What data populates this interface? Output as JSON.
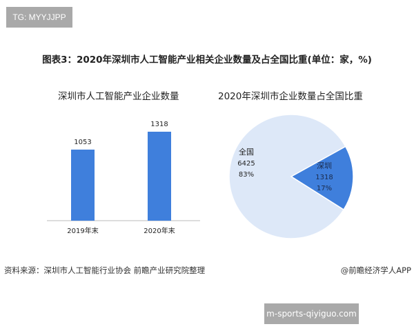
{
  "tag": "TG: MYYJJPP",
  "title": "图表3：2020年深圳市人工智能产业相关企业数量及占全国比重(单位：家，%)",
  "site": "m-sports-qiyiguo.com",
  "footer": {
    "source": "资料来源：深圳市人工智能行业协会 前瞻产业研究院整理",
    "credit": "@前瞻经济学人APP"
  },
  "colors": {
    "bar": "#3f7fdc",
    "slice_shenzhen": "#3f7fdc",
    "slice_national": "#dde8f8"
  },
  "chart_data": [
    {
      "type": "bar",
      "title": "深圳市人工智能产业企业数量",
      "categories": [
        "2019年末",
        "2020年末"
      ],
      "values": [
        1053,
        1318
      ],
      "data_labels": [
        "1053",
        "1318"
      ],
      "ylim": [
        0,
        1400
      ],
      "grid": false
    },
    {
      "type": "pie",
      "title": "2020年深圳市企业数量占全国比重",
      "slices": [
        {
          "label": "深圳",
          "value": 1318,
          "value_label": "1318",
          "percent_label": "17%",
          "percent": 17
        },
        {
          "label": "全国",
          "value": 6425,
          "value_label": "6425",
          "percent_label": "83%",
          "percent": 83
        }
      ]
    }
  ]
}
